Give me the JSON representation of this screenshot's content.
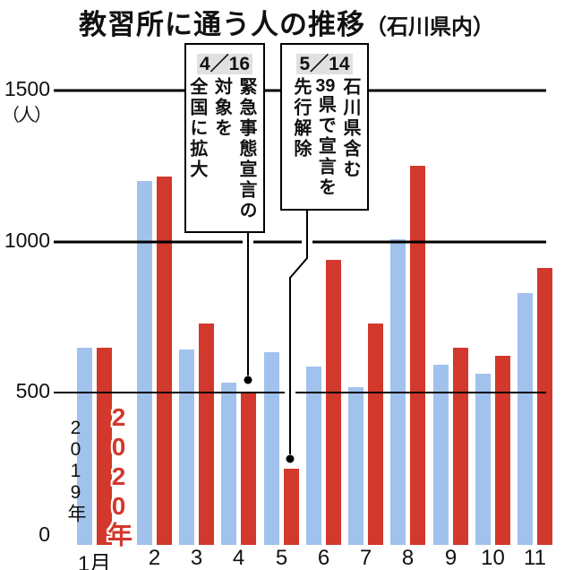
{
  "title": {
    "main": "教習所に通う人の推移",
    "sub": "（石川県内）"
  },
  "y_axis": {
    "unit": "（人）",
    "ticks": [
      "1500",
      "1000",
      "500",
      "0"
    ]
  },
  "series_labels": {
    "y2019": "2019年",
    "y2020": "2020年"
  },
  "annotations": [
    {
      "date": "4／16",
      "lines": [
        "緊急事態宣言の",
        "対象を",
        "全国に拡大"
      ]
    },
    {
      "date": "5／14",
      "lines": [
        "石川県含む",
        "39県で宣言を",
        "先行解除"
      ]
    }
  ],
  "colors": {
    "bar_2019": "#a1c2ec",
    "bar_2020": "#d2382c",
    "label_2020": "#d2382c",
    "date_highlight": "#e0e0e0",
    "gridline": "#000000"
  },
  "chart_data": {
    "type": "bar",
    "title": "教習所に通う人の推移（石川県内）",
    "ylabel": "人",
    "ylim": [
      0,
      1500
    ],
    "yticks": [
      0,
      500,
      1000,
      1500
    ],
    "grid": "horizontal",
    "legend_position": "on-first-bars",
    "categories": [
      "1月",
      "2",
      "3",
      "4",
      "5",
      "6",
      "7",
      "8",
      "9",
      "10",
      "11"
    ],
    "series": [
      {
        "name": "2019年",
        "color": "#a1c2ec",
        "values": [
          650,
          1200,
          645,
          535,
          635,
          590,
          520,
          1010,
          595,
          565,
          830
        ]
      },
      {
        "name": "2020年",
        "color": "#d2382c",
        "values": [
          650,
          1215,
          730,
          505,
          250,
          940,
          730,
          1250,
          650,
          625,
          915
        ]
      }
    ],
    "annotations": [
      {
        "date": "4／16",
        "text": "緊急事態宣言の対象を全国に拡大",
        "points_to": {
          "month": "4",
          "series": "2020年"
        }
      },
      {
        "date": "5／14",
        "text": "石川県含む39県で宣言を先行解除",
        "points_to": {
          "month": "5",
          "series": "2020年"
        }
      }
    ]
  }
}
